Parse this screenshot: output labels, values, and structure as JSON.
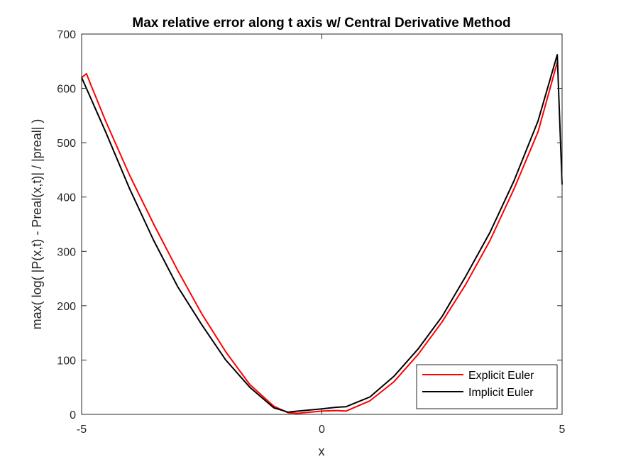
{
  "chart_data": {
    "type": "line",
    "title": "Max relative error along t axis w/ Central Derivative Method",
    "xlabel": "x",
    "ylabel": "max( log( |P(x,t) - Preal(x,t)| / |preal| )",
    "xlim": [
      -5,
      5
    ],
    "ylim": [
      0,
      700
    ],
    "xticks": [
      -5,
      0,
      5
    ],
    "yticks": [
      0,
      100,
      200,
      300,
      400,
      500,
      600,
      700
    ],
    "grid": false,
    "legend_position": "bottom-right",
    "series": [
      {
        "name": "Explicit Euler",
        "color": "#ff0000",
        "x": [
          -5,
          -4.9,
          -4.8,
          -4.5,
          -4,
          -3.5,
          -3,
          -2.5,
          -2,
          -1.5,
          -1,
          -0.7,
          -0.5,
          0,
          0.3,
          0.5,
          1,
          1.5,
          2,
          2.5,
          3,
          3.5,
          4,
          4.5,
          4.9
        ],
        "y": [
          620,
          627,
          605,
          540,
          440,
          350,
          265,
          185,
          115,
          55,
          15,
          3,
          2,
          6,
          7,
          6,
          25,
          60,
          110,
          170,
          240,
          320,
          415,
          520,
          648
        ]
      },
      {
        "name": "Implicit Euler",
        "color": "#000000",
        "x": [
          -5,
          -4.9,
          -4.5,
          -4,
          -3.5,
          -3,
          -2.5,
          -2,
          -1.5,
          -1,
          -0.7,
          -0.5,
          0,
          0.3,
          0.5,
          1,
          1.5,
          2,
          2.5,
          3,
          3.5,
          4,
          4.5,
          4.9,
          5
        ],
        "y": [
          620,
          600,
          520,
          415,
          320,
          235,
          165,
          100,
          50,
          12,
          4,
          6,
          10,
          13,
          14,
          32,
          70,
          120,
          180,
          255,
          335,
          430,
          540,
          662,
          423
        ]
      }
    ]
  }
}
